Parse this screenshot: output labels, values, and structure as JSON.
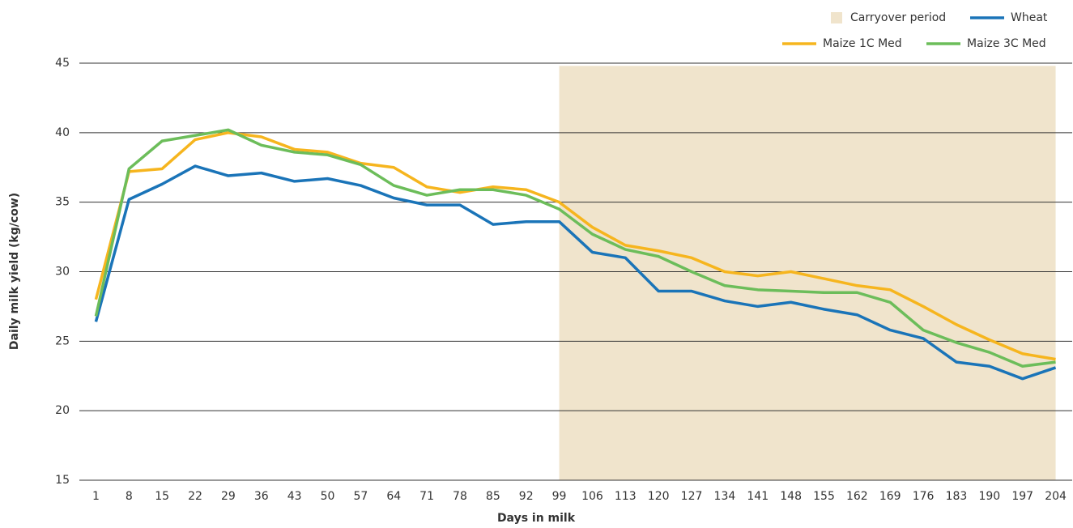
{
  "chart_data": {
    "type": "line",
    "x_label": "Days in milk",
    "y_label": "Daily milk yield (kg/cow)",
    "categories": [
      "1",
      "8",
      "15",
      "22",
      "29",
      "36",
      "43",
      "50",
      "57",
      "64",
      "71",
      "78",
      "85",
      "92",
      "99",
      "106",
      "113",
      "120",
      "127",
      "134",
      "141",
      "148",
      "155",
      "162",
      "169",
      "176",
      "183",
      "190",
      "197",
      "204"
    ],
    "series": [
      {
        "name": "Carryover period",
        "type": "area",
        "color": "#f0e4cc",
        "values": [
          null,
          null,
          null,
          null,
          null,
          null,
          null,
          null,
          null,
          null,
          null,
          null,
          null,
          null,
          44.8,
          44.8,
          44.8,
          44.8,
          44.8,
          44.8,
          44.8,
          44.8,
          44.8,
          44.8,
          44.8,
          44.8,
          44.8,
          44.8,
          44.8,
          44.8
        ]
      },
      {
        "name": "Wheat",
        "color": "#1a74b8",
        "values": [
          26.4,
          35.2,
          36.3,
          37.6,
          36.9,
          37.1,
          36.5,
          36.7,
          36.2,
          35.3,
          34.8,
          34.8,
          33.4,
          33.6,
          33.6,
          31.4,
          31.0,
          28.6,
          28.6,
          27.9,
          27.5,
          27.8,
          27.3,
          26.9,
          25.8,
          25.2,
          23.5,
          23.2,
          22.3,
          23.1
        ]
      },
      {
        "name": "Maize 1C Med",
        "color": "#f6b51e",
        "values": [
          28.0,
          37.2,
          37.4,
          39.5,
          40.0,
          39.7,
          38.8,
          38.6,
          37.8,
          37.5,
          36.1,
          35.7,
          36.1,
          35.9,
          35.0,
          33.2,
          31.9,
          31.5,
          31.0,
          30.0,
          29.7,
          30.0,
          29.5,
          29.0,
          28.7,
          27.5,
          26.2,
          25.1,
          24.1,
          23.7
        ]
      },
      {
        "name": "Maize 3C Med",
        "color": "#6cbd5a",
        "values": [
          26.8,
          37.4,
          39.4,
          39.8,
          40.2,
          39.1,
          38.6,
          38.4,
          37.7,
          36.2,
          35.5,
          35.9,
          35.9,
          35.5,
          34.5,
          32.7,
          31.6,
          31.1,
          30.0,
          29.0,
          28.7,
          28.6,
          28.5,
          28.5,
          27.8,
          25.8,
          24.9,
          24.2,
          23.2,
          23.5
        ]
      }
    ],
    "ylim": [
      15,
      45
    ],
    "yticks": [
      15,
      20,
      25,
      30,
      35,
      40,
      45
    ],
    "grid": true,
    "legend": "top-right"
  }
}
